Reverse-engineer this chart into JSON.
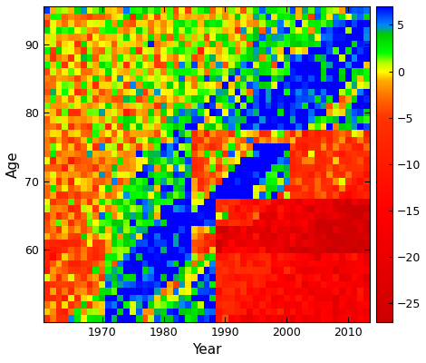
{
  "year_start": 1961,
  "year_end": 2013,
  "age_start": 50,
  "age_end": 95,
  "vmin": -27,
  "vmax": 7,
  "colorbar_ticks": [
    5,
    0,
    -5,
    -10,
    -15,
    -20,
    -25
  ],
  "xlabel": "Year",
  "ylabel": "Age",
  "xticks": [
    1970,
    1980,
    1990,
    2000,
    2010
  ],
  "yticks": [
    60,
    70,
    80,
    90
  ],
  "background_color": "#ffffff",
  "seed": 12345
}
